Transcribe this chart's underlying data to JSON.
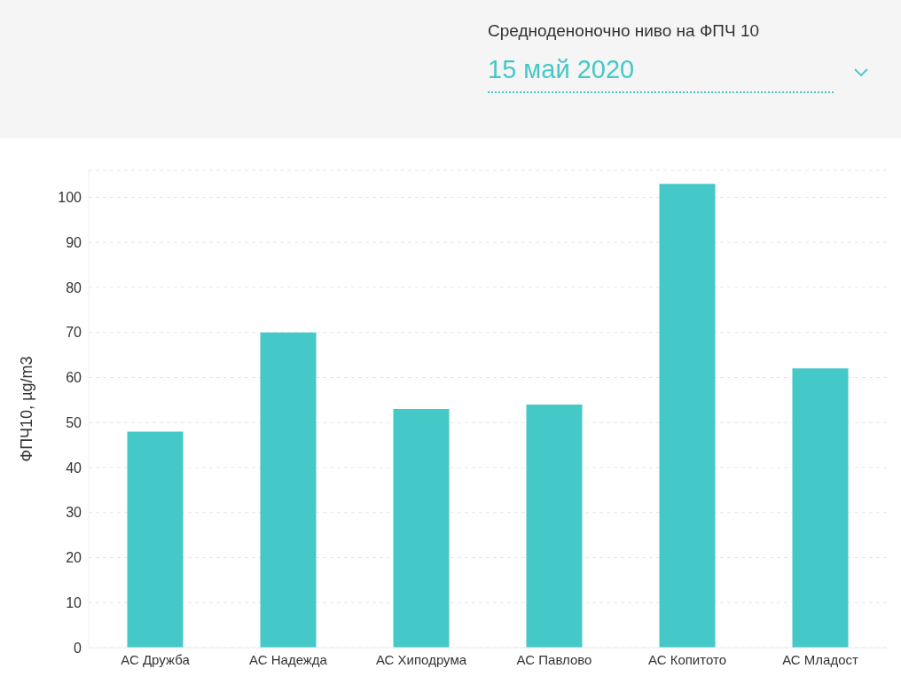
{
  "chart_data": {
    "type": "bar",
    "title": "Средноденоночно ниво на ФПЧ 10",
    "subtitle": "15 май 2020",
    "ylabel": "ФПЧ10, µg/m3",
    "categories": [
      "АС Дружба",
      "АС Надежда",
      "АС Хиподрума",
      "АС Павлово",
      "АС Копитото",
      "АС Младост"
    ],
    "values": [
      48,
      70,
      53,
      54,
      103,
      62
    ],
    "color": "#45c8c8",
    "ylim": [
      0,
      106
    ],
    "yticks": [
      0,
      10,
      20,
      30,
      40,
      50,
      60,
      70,
      80,
      90,
      100
    ],
    "grid": "y",
    "legend": false
  }
}
